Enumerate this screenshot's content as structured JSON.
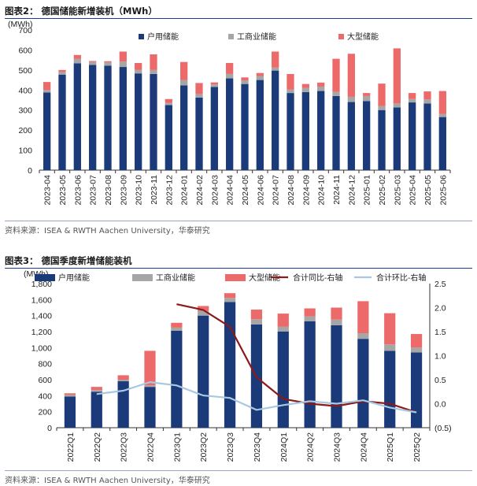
{
  "figure2": {
    "title": "图表2：  德国储能新增装机（MWh）",
    "source": "资料来源：ISEA & RWTH Aachen University，华泰研究"
  },
  "figure3": {
    "title": "图表3：  德国季度新增储能装机",
    "source": "资料来源：ISEA & RWTH Aachen University，华泰研究"
  },
  "colors": {
    "household": "#1b3a7a",
    "commercial": "#a6a6a6",
    "utility": "#ec6a6a",
    "yoy": "#8b1a1a",
    "qoq": "#a9c8e0"
  },
  "chart_data": [
    {
      "type": "bar",
      "stacked": true,
      "ylabel": "(MWh)",
      "ylim": [
        0,
        700
      ],
      "yticks": [
        0,
        100,
        200,
        300,
        400,
        500,
        600,
        700
      ],
      "legend_position": "top",
      "categories": [
        "2023-04",
        "2023-05",
        "2023-06",
        "2023-07",
        "2023-08",
        "2023-09",
        "2023-10",
        "2023-11",
        "2023-12",
        "2024-01",
        "2024-02",
        "2024-03",
        "2024-04",
        "2024-05",
        "2024-06",
        "2024-07",
        "2024-08",
        "2024-09",
        "2024-10",
        "2024-11",
        "2024-12",
        "2025-01",
        "2025-02",
        "2025-03",
        "2025-04",
        "2025-05",
        "2025-06"
      ],
      "series": [
        {
          "name": "户用储能",
          "values": [
            388,
            477,
            533,
            525,
            522,
            515,
            483,
            480,
            325,
            423,
            362,
            415,
            458,
            430,
            450,
            497,
            385,
            390,
            395,
            370,
            340,
            345,
            300,
            313,
            338,
            333,
            265
          ]
        },
        {
          "name": "工商业储能",
          "values": [
            12,
            13,
            22,
            15,
            17,
            27,
            17,
            20,
            10,
            27,
            18,
            13,
            22,
            18,
            20,
            15,
            17,
            20,
            22,
            21,
            26,
            25,
            20,
            20,
            17,
            20,
            15
          ]
        },
        {
          "name": "大型储能",
          "values": [
            40,
            10,
            20,
            5,
            5,
            50,
            35,
            78,
            20,
            90,
            55,
            10,
            55,
            15,
            15,
            80,
            78,
            20,
            20,
            165,
            215,
            15,
            112,
            275,
            30,
            40,
            115
          ]
        }
      ]
    },
    {
      "type": "bar",
      "stacked": true,
      "ylabel": "(MWh)",
      "ylim": [
        0,
        1800
      ],
      "yticks": [
        0,
        200,
        400,
        600,
        800,
        1000,
        1200,
        1400,
        1600,
        1800
      ],
      "y2lim": [
        -0.5,
        2.5
      ],
      "y2ticks": [
        "(0.5)",
        "0.0",
        "0.5",
        "1.0",
        "1.5",
        "2.0",
        "2.5"
      ],
      "legend_position": "top",
      "categories": [
        "2022Q1",
        "2022Q2",
        "2022Q3",
        "2022Q4",
        "2023Q1",
        "2023Q2",
        "2023Q3",
        "2023Q4",
        "2024Q1",
        "2024Q2",
        "2024Q3",
        "2024Q4",
        "2025Q1",
        "2025Q2"
      ],
      "series": [
        {
          "name": "户用储能",
          "values": [
            390,
            450,
            580,
            510,
            1210,
            1400,
            1570,
            1290,
            1200,
            1330,
            1280,
            1110,
            960,
            940
          ]
        },
        {
          "name": "工商业储能",
          "values": [
            20,
            20,
            20,
            20,
            40,
            60,
            50,
            65,
            60,
            60,
            70,
            70,
            80,
            60
          ]
        },
        {
          "name": "大型储能",
          "values": [
            20,
            40,
            55,
            430,
            60,
            60,
            60,
            120,
            165,
            100,
            150,
            400,
            390,
            170
          ]
        }
      ],
      "lines": [
        {
          "name": "合计同比-右轴",
          "values": [
            null,
            null,
            null,
            null,
            2.07,
            1.95,
            1.6,
            0.55,
            0.1,
            0.0,
            -0.05,
            0.05,
            0.0,
            -0.18
          ]
        },
        {
          "name": "合计环比-右轴",
          "values": [
            null,
            0.2,
            0.27,
            0.45,
            0.38,
            0.17,
            0.12,
            -0.13,
            -0.03,
            0.05,
            0.0,
            0.07,
            -0.08,
            -0.18
          ]
        }
      ]
    }
  ]
}
